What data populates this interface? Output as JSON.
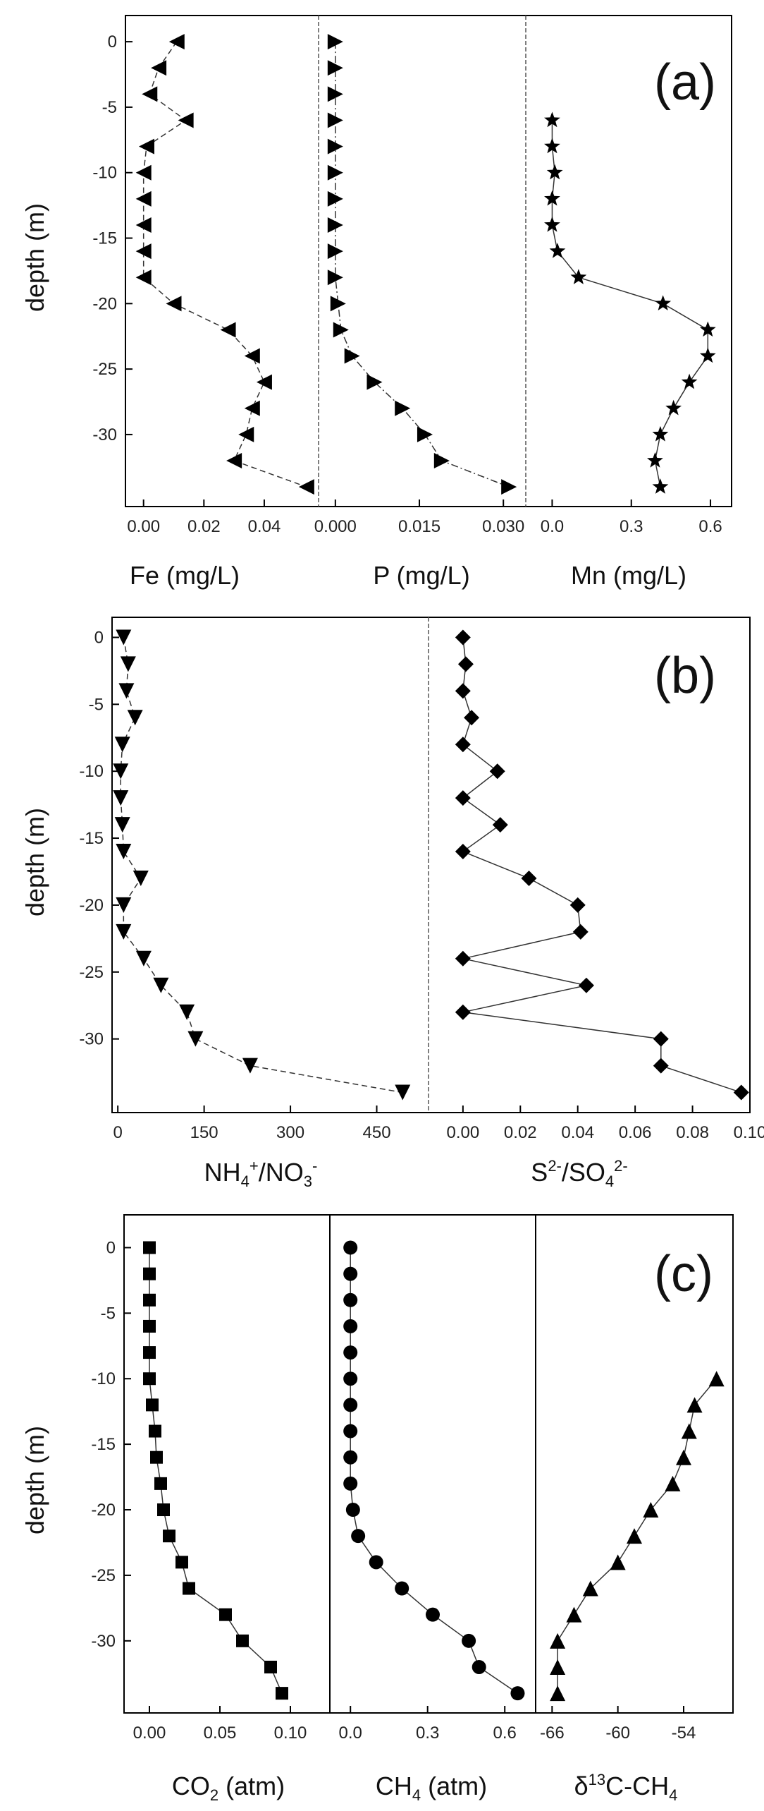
{
  "chart_data": [
    {
      "type": "scatter",
      "panel": "(a)",
      "ylabel": "depth (m)",
      "ylim": [
        -35.5,
        2
      ],
      "yticks": [
        0,
        -5,
        -10,
        -15,
        -20,
        -25,
        -30
      ],
      "subplots": [
        {
          "xlabel": "Fe (mg/L)",
          "xticks": [
            "0.00",
            "0.02",
            "0.04"
          ],
          "xlim": [
            -0.006,
            0.058
          ],
          "marker": "tri-left",
          "linestyle": "dashed",
          "depth": [
            0,
            -2,
            -4,
            -6,
            -8,
            -10,
            -12,
            -14,
            -16,
            -18,
            -20,
            -22,
            -24,
            -26,
            -28,
            -30,
            -32,
            -34
          ],
          "values": [
            0.011,
            0.005,
            0.002,
            0.014,
            0.001,
            0.0,
            0.0,
            0.0,
            0.0,
            0.0,
            0.01,
            0.028,
            0.036,
            0.04,
            0.036,
            0.034,
            0.03,
            0.054
          ]
        },
        {
          "xlabel": "P (mg/L)",
          "xticks": [
            "0.000",
            "0.015",
            "0.030"
          ],
          "xlim": [
            -0.003,
            0.034
          ],
          "marker": "tri-right",
          "linestyle": "dashdot",
          "depth": [
            0,
            -2,
            -4,
            -6,
            -8,
            -10,
            -12,
            -14,
            -16,
            -18,
            -20,
            -22,
            -24,
            -26,
            -28,
            -30,
            -32,
            -34
          ],
          "values": [
            0.0,
            0.0,
            0.0,
            0.0,
            0.0,
            0.0,
            0.0,
            0.0,
            0.0,
            0.0,
            0.0005,
            0.001,
            0.003,
            0.007,
            0.012,
            0.016,
            0.019,
            0.031
          ]
        },
        {
          "xlabel": "Mn (mg/L)",
          "xticks": [
            "0.0",
            "0.3",
            "0.6"
          ],
          "xlim": [
            -0.1,
            0.68
          ],
          "marker": "star",
          "linestyle": "solid",
          "depth": [
            -6,
            -8,
            -10,
            -12,
            -14,
            -16,
            -18,
            -20,
            -22,
            -24,
            -26,
            -28,
            -30,
            -32,
            -34
          ],
          "values": [
            0.0,
            0.0,
            0.01,
            0.0,
            0.0,
            0.02,
            0.1,
            0.42,
            0.59,
            0.59,
            0.52,
            0.46,
            0.41,
            0.39,
            0.41
          ]
        }
      ]
    },
    {
      "type": "scatter",
      "panel": "(b)",
      "ylabel": "depth (m)",
      "ylim": [
        -35.5,
        1.5
      ],
      "yticks": [
        0,
        -5,
        -10,
        -15,
        -20,
        -25,
        -30
      ],
      "subplots": [
        {
          "xlabel": "NH4+/NO3-",
          "xlabel_parts": {
            "a": "NH",
            "b": "4",
            "c": "+",
            "d": "/NO",
            "e": "3",
            "f": "-"
          },
          "xticks": [
            "0",
            "150",
            "300",
            "450"
          ],
          "xlim": [
            -10,
            540
          ],
          "marker": "tri-down",
          "linestyle": "dashed",
          "depth": [
            0,
            -2,
            -4,
            -6,
            -8,
            -10,
            -12,
            -14,
            -16,
            -18,
            -20,
            -22,
            -24,
            -26,
            -28,
            -30,
            -32,
            -34
          ],
          "values": [
            10,
            18,
            15,
            30,
            8,
            5,
            5,
            8,
            10,
            40,
            10,
            10,
            45,
            75,
            120,
            135,
            230,
            495
          ]
        },
        {
          "xlabel": "S2-/SO42-",
          "xlabel_parts": {
            "a": "S",
            "b": "2-",
            "c": "/SO",
            "d": "4",
            "e": "2-"
          },
          "xticks": [
            "0.00",
            "0.02",
            "0.04",
            "0.06",
            "0.08",
            "0.10"
          ],
          "xlim": [
            -0.012,
            0.1
          ],
          "marker": "diamond",
          "linestyle": "solid",
          "depth": [
            0,
            -2,
            -4,
            -6,
            -8,
            -10,
            -12,
            -14,
            -16,
            -18,
            -20,
            -22,
            -24,
            -26,
            -28,
            -30,
            -32,
            -34
          ],
          "values": [
            0.0,
            0.001,
            0.0,
            0.003,
            0.0,
            0.012,
            0.0,
            0.013,
            0.0,
            0.023,
            0.04,
            0.041,
            0.0,
            0.043,
            0.0,
            0.069,
            0.069,
            0.097
          ]
        }
      ]
    },
    {
      "type": "scatter",
      "panel": "(c)",
      "ylabel": "depth (m)",
      "ylim": [
        -35.5,
        2.5
      ],
      "yticks": [
        0,
        -5,
        -10,
        -15,
        -20,
        -25,
        -30
      ],
      "subplots": [
        {
          "xlabel": "CO2 (atm)",
          "xlabel_parts": {
            "a": "CO",
            "b": "2",
            "c": " (atm)"
          },
          "xticks": [
            "0.00",
            "0.05",
            "0.10"
          ],
          "xlim": [
            -0.018,
            0.128
          ],
          "marker": "square",
          "linestyle": "solid",
          "depth": [
            0,
            -2,
            -4,
            -6,
            -8,
            -10,
            -12,
            -14,
            -16,
            -18,
            -20,
            -22,
            -24,
            -26,
            -28,
            -30,
            -32,
            -34
          ],
          "values": [
            0.0,
            0.0,
            0.0,
            0.0,
            0.0,
            0.0,
            0.002,
            0.004,
            0.005,
            0.008,
            0.01,
            0.014,
            0.023,
            0.028,
            0.054,
            0.066,
            0.086,
            0.094
          ]
        },
        {
          "xlabel": "CH4 (atm)",
          "xlabel_parts": {
            "a": "CH",
            "b": "4",
            "c": " (atm)"
          },
          "xticks": [
            "0.0",
            "0.3",
            "0.6"
          ],
          "xlim": [
            -0.08,
            0.72
          ],
          "marker": "circle",
          "linestyle": "solid",
          "depth": [
            0,
            -2,
            -4,
            -6,
            -8,
            -10,
            -12,
            -14,
            -16,
            -18,
            -20,
            -22,
            -24,
            -26,
            -28,
            -30,
            -32,
            -34
          ],
          "values": [
            0.0,
            0.0,
            0.0,
            0.0,
            0.0,
            0.0,
            0.0,
            0.0,
            0.0,
            0.0,
            0.01,
            0.03,
            0.1,
            0.2,
            0.32,
            0.46,
            0.5,
            0.65
          ]
        },
        {
          "xlabel": "δ13C-CH4",
          "xlabel_parts": {
            "a": "δ",
            "b": "13",
            "c": "C-CH",
            "d": "4"
          },
          "xticks": [
            "-66",
            "-60",
            "-54"
          ],
          "xlim": [
            -67.5,
            -49.5
          ],
          "marker": "tri-up",
          "linestyle": "solid",
          "depth": [
            -10,
            -12,
            -14,
            -16,
            -18,
            -20,
            -22,
            -24,
            -26,
            -28,
            -30,
            -32,
            -34
          ],
          "values": [
            -51,
            -53,
            -53.5,
            -54,
            -55,
            -57,
            -58.5,
            -60,
            -62.5,
            -64,
            -65.5,
            -65.5,
            -65.5
          ]
        }
      ]
    }
  ]
}
